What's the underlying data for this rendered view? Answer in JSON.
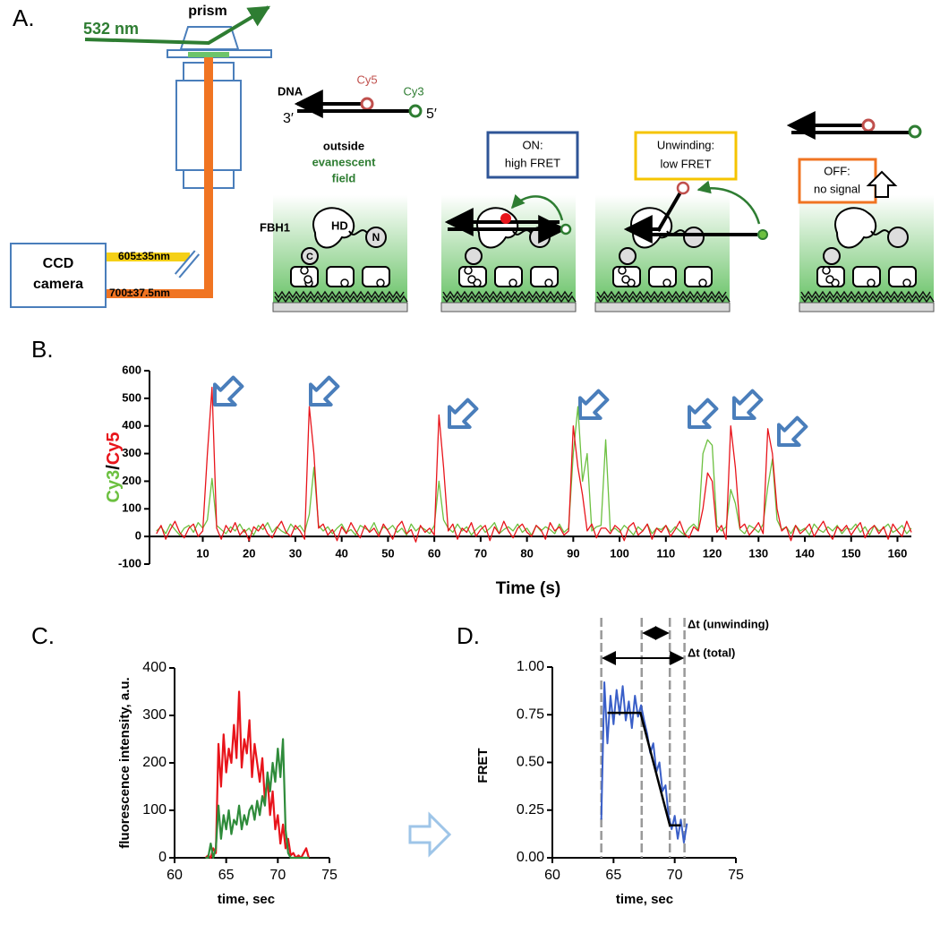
{
  "diagram": {
    "panel": "A.",
    "laser": "532 nm",
    "prism": "prism",
    "camera": [
      "CCD",
      "camera"
    ],
    "filters": [
      "605±35nm",
      "700±37.5nm"
    ],
    "dna": "DNA",
    "cy5": "Cy5",
    "cy3": "Cy3",
    "end3": "3′",
    "end5": "5′",
    "outside": [
      "outside",
      "evanescent",
      "field"
    ],
    "protein": {
      "name": "FBH1",
      "hd": "HD",
      "n": "N",
      "c": "C"
    },
    "states": [
      {
        "title": "ON:",
        "subtitle": "high FRET"
      },
      {
        "title": "Unwinding:",
        "subtitle": "low FRET"
      },
      {
        "title": "OFF:",
        "subtitle": "no signal"
      }
    ]
  },
  "chart_data": [
    {
      "type": "line",
      "label": "B.",
      "xlabel": "Time (s)",
      "ylabel_separator": "/",
      "x": [
        0,
        1,
        2,
        3,
        4,
        5,
        6,
        7,
        8,
        9,
        10,
        11,
        12,
        13,
        14,
        15,
        16,
        17,
        18,
        19,
        20,
        21,
        22,
        23,
        24,
        25,
        26,
        27,
        28,
        29,
        30,
        31,
        32,
        33,
        34,
        35,
        36,
        37,
        38,
        39,
        40,
        41,
        42,
        43,
        44,
        45,
        46,
        47,
        48,
        49,
        50,
        51,
        52,
        53,
        54,
        55,
        56,
        57,
        58,
        59,
        60,
        61,
        62,
        63,
        64,
        65,
        66,
        67,
        68,
        69,
        70,
        71,
        72,
        73,
        74,
        75,
        76,
        77,
        78,
        79,
        80,
        81,
        82,
        83,
        84,
        85,
        86,
        87,
        88,
        89,
        90,
        91,
        92,
        93,
        94,
        95,
        96,
        97,
        98,
        99,
        100,
        101,
        102,
        103,
        104,
        105,
        106,
        107,
        108,
        109,
        110,
        111,
        112,
        113,
        114,
        115,
        116,
        117,
        118,
        119,
        120,
        121,
        122,
        123,
        124,
        125,
        126,
        127,
        128,
        129,
        130,
        131,
        132,
        133,
        134,
        135,
        136,
        137,
        138,
        139,
        140,
        141,
        142,
        143,
        144,
        145,
        146,
        147,
        148,
        149,
        150,
        151,
        152,
        153,
        154,
        155,
        156,
        157,
        158,
        159,
        160,
        161,
        162,
        163
      ],
      "series": [
        {
          "name": "Cy3",
          "color": "#6cc040",
          "values": [
            20,
            35,
            10,
            45,
            25,
            5,
            30,
            40,
            15,
            50,
            30,
            60,
            210,
            40,
            25,
            10,
            35,
            20,
            45,
            15,
            30,
            5,
            40,
            25,
            50,
            15,
            35,
            20,
            10,
            45,
            25,
            40,
            15,
            80,
            250,
            40,
            20,
            35,
            10,
            30,
            45,
            15,
            25,
            5,
            40,
            30,
            20,
            50,
            10,
            35,
            25,
            40,
            15,
            30,
            5,
            45,
            20,
            35,
            25,
            10,
            40,
            200,
            60,
            30,
            15,
            45,
            20,
            35,
            5,
            25,
            40,
            15,
            30,
            50,
            10,
            25,
            35,
            20,
            45,
            15,
            30,
            5,
            40,
            20,
            35,
            25,
            10,
            45,
            15,
            30,
            300,
            470,
            200,
            300,
            20,
            35,
            40,
            350,
            20,
            30,
            15,
            40,
            25,
            5,
            35,
            20,
            45,
            10,
            30,
            25,
            40,
            15,
            35,
            20,
            5,
            30,
            45,
            25,
            300,
            350,
            330,
            40,
            20,
            35,
            170,
            120,
            25,
            10,
            40,
            30,
            15,
            45,
            180,
            280,
            60,
            25,
            35,
            10,
            40,
            20,
            30,
            5,
            45,
            25,
            15,
            35,
            20,
            40,
            10,
            30,
            25,
            45,
            15,
            35,
            5,
            40,
            20,
            30,
            45,
            15,
            25,
            40,
            10,
            30
          ]
        },
        {
          "name": "Cy5",
          "color": "#e8141b",
          "values": [
            10,
            40,
            -10,
            25,
            55,
            15,
            -5,
            30,
            45,
            0,
            20,
            300,
            540,
            30,
            -10,
            40,
            15,
            50,
            5,
            25,
            -15,
            35,
            20,
            45,
            10,
            -5,
            30,
            55,
            15,
            0,
            40,
            20,
            -10,
            470,
            300,
            30,
            45,
            5,
            25,
            -15,
            35,
            10,
            50,
            20,
            -5,
            40,
            15,
            30,
            0,
            45,
            20,
            -10,
            35,
            55,
            10,
            25,
            -20,
            40,
            15,
            30,
            5,
            440,
            250,
            20,
            45,
            -10,
            30,
            15,
            50,
            0,
            25,
            40,
            -15,
            35,
            10,
            55,
            20,
            -5,
            30,
            45,
            15,
            0,
            40,
            25,
            -10,
            50,
            20,
            35,
            5,
            20,
            400,
            250,
            150,
            20,
            45,
            -5,
            30,
            30,
            10,
            40,
            25,
            -15,
            35,
            50,
            5,
            20,
            45,
            -10,
            30,
            15,
            40,
            0,
            25,
            55,
            10,
            -5,
            35,
            20,
            100,
            230,
            200,
            15,
            40,
            -10,
            400,
            250,
            30,
            45,
            5,
            25,
            50,
            10,
            390,
            300,
            100,
            20,
            35,
            -15,
            40,
            10,
            25,
            45,
            0,
            30,
            55,
            15,
            -10,
            35,
            20,
            40,
            5,
            30,
            50,
            -5,
            25,
            40,
            10,
            35,
            -10,
            45,
            20,
            0,
            55,
            15
          ]
        }
      ],
      "xlim": [
        -1.5,
        163
      ],
      "xticks": [
        10,
        20,
        30,
        40,
        50,
        60,
        70,
        80,
        90,
        100,
        110,
        120,
        130,
        140,
        150,
        160
      ],
      "ylim": [
        -100,
        600
      ],
      "yticks": [
        -100,
        0,
        100,
        200,
        300,
        400,
        500,
        600
      ]
    },
    {
      "type": "line",
      "label": "C.",
      "xlabel": "time, sec",
      "ylabel": "fluorescence intensity, a.u.",
      "x": [
        63,
        63.25,
        63.5,
        63.75,
        64,
        64.25,
        64.5,
        64.75,
        65,
        65.25,
        65.5,
        65.75,
        66,
        66.25,
        66.5,
        66.75,
        67,
        67.25,
        67.5,
        67.75,
        68,
        68.25,
        68.5,
        68.75,
        69,
        69.25,
        69.5,
        69.75,
        70,
        70.25,
        70.5,
        70.75,
        71,
        71.25,
        71.5,
        71.75,
        72,
        72.25,
        72.5,
        72.75,
        73
      ],
      "series": [
        {
          "color": "#e8141b",
          "values": [
            0,
            5,
            0,
            20,
            10,
            240,
            150,
            260,
            180,
            230,
            200,
            280,
            210,
            350,
            190,
            250,
            220,
            290,
            170,
            240,
            200,
            160,
            210,
            120,
            170,
            90,
            140,
            60,
            90,
            30,
            70,
            20,
            40,
            5,
            10,
            0,
            5,
            0,
            10,
            20,
            0
          ]
        },
        {
          "color": "#2e8b3a",
          "values": [
            0,
            0,
            30,
            0,
            20,
            110,
            40,
            90,
            60,
            100,
            50,
            80,
            70,
            110,
            60,
            90,
            70,
            100,
            110,
            80,
            120,
            90,
            130,
            110,
            180,
            140,
            200,
            160,
            230,
            170,
            250,
            60,
            10,
            0,
            0,
            0,
            0,
            0,
            0,
            0,
            0
          ]
        }
      ],
      "xlim": [
        60,
        75
      ],
      "xticks": [
        60,
        65,
        70,
        75
      ],
      "ylim": [
        0,
        400
      ],
      "yticks": [
        0,
        100,
        200,
        300,
        400
      ]
    },
    {
      "type": "line",
      "label": "D.",
      "xlabel": "time, sec",
      "ylabel": "FRET",
      "x": [
        64,
        64.25,
        64.5,
        64.75,
        65,
        65.25,
        65.5,
        65.75,
        66,
        66.25,
        66.5,
        66.75,
        67,
        67.25,
        67.5,
        67.75,
        68,
        68.25,
        68.5,
        68.75,
        69,
        69.25,
        69.5,
        69.75,
        70,
        70.25,
        70.5,
        70.75,
        71
      ],
      "series": [
        {
          "color": "#3a5fc8",
          "values": [
            0.2,
            0.92,
            0.6,
            0.85,
            0.7,
            0.88,
            0.75,
            0.9,
            0.72,
            0.82,
            0.68,
            0.85,
            0.74,
            0.8,
            0.72,
            0.65,
            0.55,
            0.6,
            0.45,
            0.5,
            0.35,
            0.38,
            0.22,
            0.15,
            0.22,
            0.1,
            0.2,
            0.08,
            0.18
          ]
        }
      ],
      "fit": {
        "x": [
          64.5,
          67.2,
          69.6,
          70.5
        ],
        "values": [
          0.76,
          0.76,
          0.17,
          0.17
        ]
      },
      "vlines": [
        64,
        67.3,
        69.6,
        70.8
      ],
      "annotations": [
        "Δt (unwinding)",
        "Δt (total)"
      ],
      "xlim": [
        60,
        75
      ],
      "xticks": [
        60,
        65,
        70,
        75
      ],
      "ylim": [
        0,
        1
      ],
      "yticks": [
        {
          "value": 0,
          "label": "0.00"
        },
        {
          "value": 0.25,
          "label": "0.25"
        },
        {
          "value": 0.5,
          "label": "0.50"
        },
        {
          "value": 0.75,
          "label": "0.75"
        },
        {
          "value": 1,
          "label": "1.00"
        }
      ]
    }
  ]
}
